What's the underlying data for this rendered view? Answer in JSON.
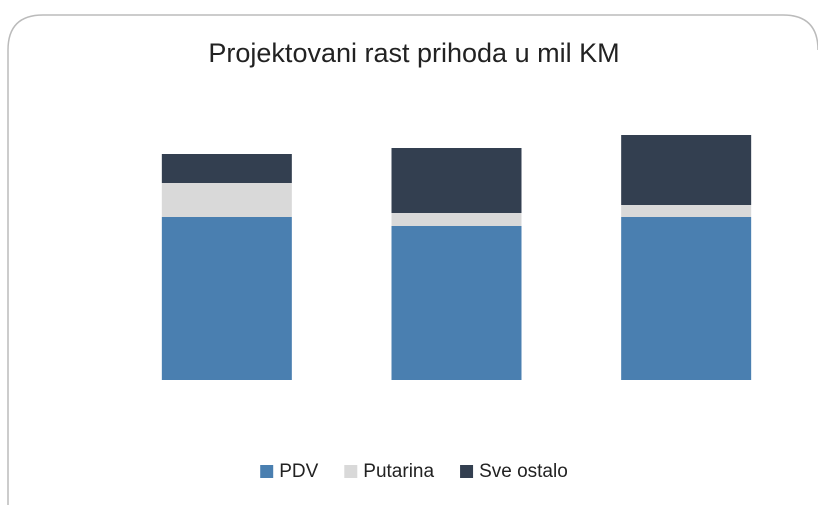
{
  "chart_data": {
    "type": "stacked_bar",
    "title": "Projektovani rast prihoda u mil KM",
    "categories": [
      null,
      null,
      null
    ],
    "series": [
      {
        "name": "PDV",
        "color": "#4a7fb0",
        "values": [
          163,
          154,
          163
        ]
      },
      {
        "name": "Putarina",
        "color": "#d9d9d9",
        "values": [
          34,
          13,
          12
        ]
      },
      {
        "name": "Sve ostalo",
        "color": "#333f50",
        "values": [
          29,
          65,
          70
        ]
      }
    ],
    "legend": "bottom"
  }
}
